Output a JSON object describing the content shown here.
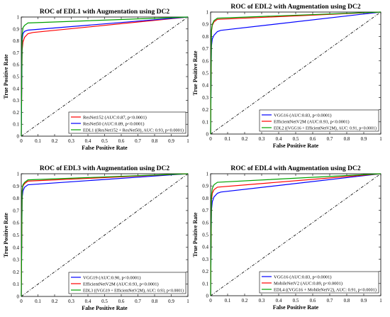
{
  "chart_data": [
    {
      "type": "line",
      "title": "ROC of EDL1 with Augmentation using DC2",
      "xlabel": "False Positive Rate",
      "ylabel": "True Positive Rate",
      "xlim": [
        0,
        1
      ],
      "ylim": [
        0,
        1
      ],
      "x_ticks": [
        "0",
        "0.1",
        "0.2",
        "0.3",
        "0.4",
        "0.5",
        "0.6",
        "0.7",
        "0.8",
        "0.9",
        "1"
      ],
      "y_ticks": [
        "0",
        "0.1",
        "0.2",
        "0.3",
        "0.4",
        "0.5",
        "0.6",
        "0.7",
        "0.8",
        "0.9",
        "1"
      ],
      "grid": false,
      "legend_position": "bottom-right",
      "diagonal": true,
      "series": [
        {
          "name": "ResNet152 (AUC:0.87, p<0.0001)",
          "color": "#ff0000",
          "x": [
            0,
            0.005,
            0.01,
            0.02,
            0.04,
            0.07,
            1
          ],
          "y": [
            0,
            0.72,
            0.79,
            0.83,
            0.86,
            0.87,
            1
          ]
        },
        {
          "name": "ResNet50 (AUC:0.89, p<0.0001)",
          "color": "#0000ff",
          "x": [
            0,
            0.005,
            0.01,
            0.02,
            0.04,
            1
          ],
          "y": [
            0,
            0.8,
            0.86,
            0.88,
            0.89,
            1
          ]
        },
        {
          "name": "EDL1 ((ResNet152 + ResNet50), AUC: 0.93, p<0.0001)",
          "color": "#00a000",
          "x": [
            0,
            0.005,
            0.01,
            0.02,
            0.04,
            1
          ],
          "y": [
            0,
            0.84,
            0.91,
            0.93,
            0.95,
            1
          ]
        }
      ]
    },
    {
      "type": "line",
      "title": "ROC of EDL2 with Augmentation using DC2",
      "xlabel": "False Positive Rate",
      "ylabel": "True Positive Rate",
      "xlim": [
        0,
        1
      ],
      "ylim": [
        0,
        1
      ],
      "x_ticks": [
        "0",
        "0.1",
        "0.2",
        "0.3",
        "0.4",
        "0.5",
        "0.6",
        "0.7",
        "0.8",
        "0.9",
        "1"
      ],
      "y_ticks": [
        "0",
        "0.1",
        "0.2",
        "0.3",
        "0.4",
        "0.5",
        "0.6",
        "0.7",
        "0.8",
        "0.9",
        "1"
      ],
      "grid": false,
      "legend_position": "bottom-right",
      "diagonal": true,
      "series": [
        {
          "name": "VGG16 (AUC:0.83, p<0.0001)",
          "color": "#0000ff",
          "x": [
            0,
            0.005,
            0.01,
            0.02,
            0.04,
            0.06,
            1
          ],
          "y": [
            0,
            0.72,
            0.78,
            0.81,
            0.84,
            0.85,
            1
          ]
        },
        {
          "name": "EfficientNetV2M (AUC:0.93, p<0.0001)",
          "color": "#ff0000",
          "x": [
            0,
            0.005,
            0.01,
            0.02,
            0.04,
            1
          ],
          "y": [
            0,
            0.84,
            0.89,
            0.92,
            0.94,
            1
          ]
        },
        {
          "name": "EDL2 ((VGG16 + EfficientNetV2M), AUC: 0.91, p<0.0001)",
          "color": "#00a000",
          "x": [
            0,
            0.005,
            0.01,
            0.02,
            0.04,
            1
          ],
          "y": [
            0,
            0.85,
            0.9,
            0.93,
            0.95,
            1
          ]
        }
      ]
    },
    {
      "type": "line",
      "title": "ROC of EDL3 with Augmentation using DC2",
      "xlabel": "False Positive Rate",
      "ylabel": "True Positive Rate",
      "xlim": [
        0,
        1
      ],
      "ylim": [
        0,
        1
      ],
      "x_ticks": [
        "0",
        "0.1",
        "0.2",
        "0.3",
        "0.4",
        "0.5",
        "0.6",
        "0.7",
        "0.8",
        "0.9",
        "1"
      ],
      "y_ticks": [
        "0",
        "0.1",
        "0.2",
        "0.3",
        "0.4",
        "0.5",
        "0.6",
        "0.7",
        "0.8",
        "0.9",
        "1"
      ],
      "grid": false,
      "legend_position": "bottom-right",
      "diagonal": true,
      "series": [
        {
          "name": "VGG19 (AUC:0.90, p<0.0001)",
          "color": "#0000ff",
          "x": [
            0,
            0.005,
            0.01,
            0.02,
            0.04,
            1
          ],
          "y": [
            0,
            0.8,
            0.86,
            0.89,
            0.91,
            1
          ]
        },
        {
          "name": "EfficientNetV2M (AUC:0.93, p<0.0001)",
          "color": "#ff0000",
          "x": [
            0,
            0.005,
            0.01,
            0.02,
            0.04,
            1
          ],
          "y": [
            0,
            0.85,
            0.9,
            0.92,
            0.94,
            1
          ]
        },
        {
          "name": "EDL3 ((VGG19 + EfficientNetV2M), AUC: 0.93, p<0.0001)",
          "color": "#00a000",
          "x": [
            0,
            0.005,
            0.01,
            0.02,
            0.04,
            1
          ],
          "y": [
            0,
            0.86,
            0.91,
            0.93,
            0.95,
            1
          ]
        }
      ]
    },
    {
      "type": "line",
      "title": "ROC of EDL4 with Augmentation using DC2",
      "xlabel": "False Positive Rate",
      "ylabel": "True Positive Rate",
      "xlim": [
        0,
        1
      ],
      "ylim": [
        0,
        1
      ],
      "x_ticks": [
        "0",
        "0.1",
        "0.2",
        "0.3",
        "0.4",
        "0.5",
        "0.6",
        "0.7",
        "0.8",
        "0.9",
        "1"
      ],
      "y_ticks": [
        "0",
        "0.1",
        "0.2",
        "0.3",
        "0.4",
        "0.5",
        "0.6",
        "0.7",
        "0.8",
        "0.9",
        "1"
      ],
      "grid": false,
      "legend_position": "bottom-right",
      "diagonal": true,
      "series": [
        {
          "name": "VGG16 (AUC:0.83, p<0.0001)",
          "color": "#0000ff",
          "x": [
            0,
            0.005,
            0.01,
            0.02,
            0.04,
            0.06,
            1
          ],
          "y": [
            0,
            0.7,
            0.77,
            0.81,
            0.84,
            0.85,
            1
          ]
        },
        {
          "name": "MobileNetV2 (AUC:0.89, p<0.0001)",
          "color": "#ff0000",
          "x": [
            0,
            0.005,
            0.01,
            0.02,
            0.04,
            1
          ],
          "y": [
            0,
            0.78,
            0.84,
            0.87,
            0.89,
            1
          ]
        },
        {
          "name": "EDL4 ((VGG16 + MobileNetV2), AUC: 0.91, p<0.0001)",
          "color": "#00a000",
          "x": [
            0,
            0.005,
            0.01,
            0.02,
            0.04,
            1
          ],
          "y": [
            0,
            0.82,
            0.88,
            0.91,
            0.93,
            1
          ]
        }
      ]
    }
  ]
}
